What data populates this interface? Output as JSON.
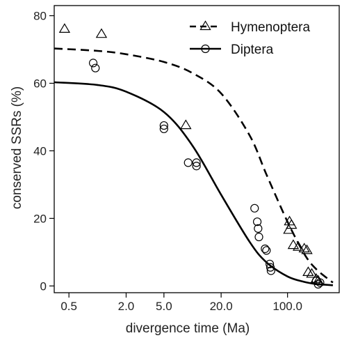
{
  "chart_data": {
    "type": "scatter",
    "xlabel": "divergence time (Ma)",
    "ylabel": "conserved SSRs (%)",
    "x_scale": "log",
    "xlim": [
      0.35,
      350
    ],
    "ylim": [
      -2,
      83
    ],
    "x_ticks": [
      0.5,
      2.0,
      5.0,
      20.0,
      100.0
    ],
    "x_tick_labels": [
      "0.5",
      "2.0",
      "5.0",
      "20.0",
      "100.0"
    ],
    "y_ticks": [
      0,
      20,
      40,
      60,
      80
    ],
    "y_tick_labels": [
      "0",
      "20",
      "40",
      "60",
      "80"
    ],
    "grid": false,
    "legend_position": "top-right",
    "series": [
      {
        "name": "Hymenoptera",
        "marker": "triangle",
        "line_style": "dashed",
        "points": [
          [
            0.45,
            76
          ],
          [
            1.1,
            74.5
          ],
          [
            8.5,
            47.5
          ],
          [
            105,
            19
          ],
          [
            110,
            18
          ],
          [
            103,
            16.5
          ],
          [
            115,
            12
          ],
          [
            130,
            11.5
          ],
          [
            150,
            11
          ],
          [
            160,
            10.5
          ],
          [
            165,
            4
          ],
          [
            180,
            3.5
          ],
          [
            200,
            2
          ],
          [
            210,
            1.5
          ]
        ],
        "fit": [
          [
            0.35,
            70.3
          ],
          [
            1,
            69.6
          ],
          [
            2,
            68.6
          ],
          [
            5,
            66.3
          ],
          [
            10,
            63
          ],
          [
            20,
            57
          ],
          [
            40,
            44.5
          ],
          [
            60,
            33
          ],
          [
            100,
            19
          ],
          [
            150,
            9.5
          ],
          [
            200,
            5
          ],
          [
            300,
            1
          ]
        ]
      },
      {
        "name": "Diptera",
        "marker": "circle",
        "line_style": "solid",
        "points": [
          [
            0.9,
            66
          ],
          [
            0.95,
            64.5
          ],
          [
            5,
            47.5
          ],
          [
            5,
            46.5
          ],
          [
            9,
            36.5
          ],
          [
            11,
            36.5
          ],
          [
            11,
            35.5
          ],
          [
            45,
            23
          ],
          [
            48,
            19
          ],
          [
            49,
            17
          ],
          [
            50,
            14.5
          ],
          [
            58,
            11
          ],
          [
            60,
            10.5
          ],
          [
            65,
            6.5
          ],
          [
            66,
            5.5
          ],
          [
            67,
            4.5
          ],
          [
            200,
            1.5
          ],
          [
            210,
            0.5
          ],
          [
            220,
            1
          ]
        ],
        "fit": [
          [
            0.35,
            60.3
          ],
          [
            1,
            59.5
          ],
          [
            2,
            57.5
          ],
          [
            5,
            51.5
          ],
          [
            10,
            41.5
          ],
          [
            20,
            27
          ],
          [
            40,
            13
          ],
          [
            60,
            7
          ],
          [
            100,
            2.8
          ],
          [
            150,
            1.2
          ],
          [
            200,
            0.6
          ],
          [
            300,
            0.2
          ]
        ]
      }
    ]
  }
}
